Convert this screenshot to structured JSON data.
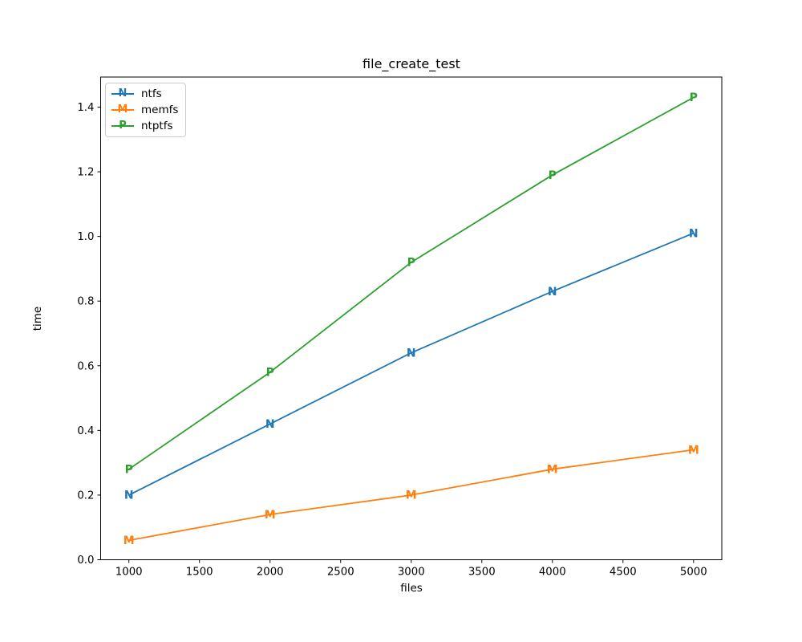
{
  "figure": {
    "background": "#ffffff",
    "spine_color": "#000000",
    "text_color": "#000000",
    "legend_border_color": "#cccccc"
  },
  "chart_data": {
    "type": "line",
    "title": "file_create_test",
    "xlabel": "files",
    "ylabel": "time",
    "x": [
      1000,
      2000,
      3000,
      4000,
      5000
    ],
    "series": [
      {
        "name": "ntfs",
        "marker": "N",
        "color": "#1f77b4",
        "values": [
          0.2,
          0.42,
          0.64,
          0.83,
          1.01
        ]
      },
      {
        "name": "memfs",
        "marker": "M",
        "color": "#ff7f0e",
        "values": [
          0.06,
          0.14,
          0.2,
          0.28,
          0.34
        ]
      },
      {
        "name": "ntptfs",
        "marker": "P",
        "color": "#2ca02c",
        "values": [
          0.28,
          0.58,
          0.92,
          1.19,
          1.43
        ]
      }
    ],
    "xlim": [
      800,
      5200
    ],
    "ylim": [
      0,
      1.493
    ],
    "xticks": [
      1000,
      1500,
      2000,
      2500,
      3000,
      3500,
      4000,
      4500,
      5000
    ],
    "yticks": [
      0.0,
      0.2,
      0.4,
      0.6,
      0.8,
      1.0,
      1.2,
      1.4
    ],
    "grid": false,
    "legend_position": "upper left"
  }
}
